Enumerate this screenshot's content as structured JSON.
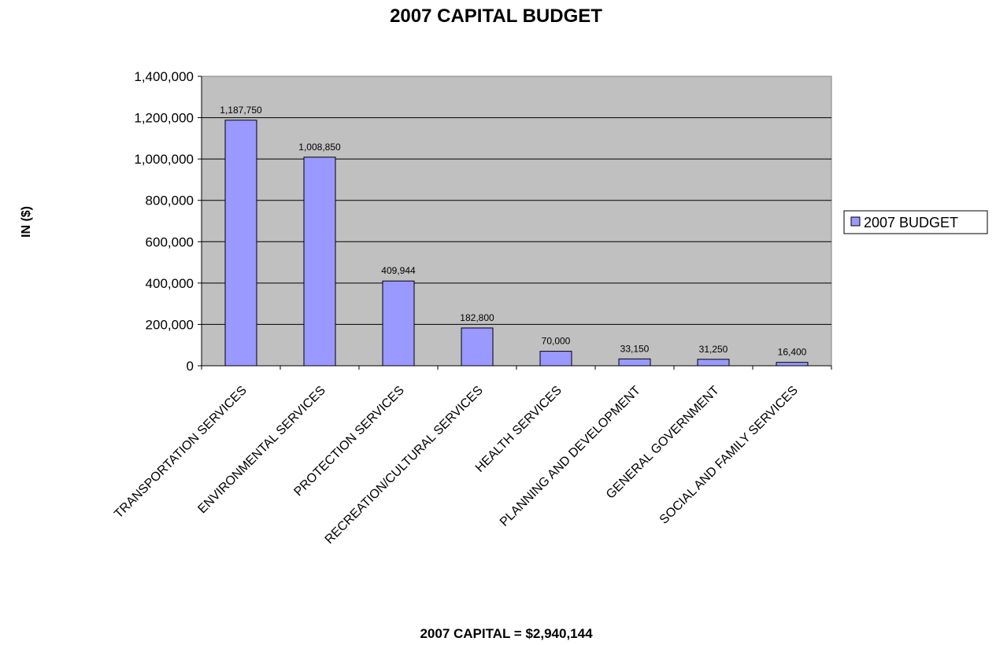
{
  "chart_data": {
    "type": "bar",
    "title": "2007 CAPITAL BUDGET",
    "ylabel": "IN ($)",
    "xlabel": "2007 CAPITAL = $2,940,144",
    "categories": [
      "TRANSPORTATION SERVICES",
      "ENVIRONMENTAL SERVICES",
      "PROTECTION SERVICES",
      "RECREATION/CULTURAL SERVICES",
      "HEALTH SERVICES",
      "PLANNING AND DEVELOPMENT",
      "GENERAL GOVERNMENT",
      "SOCIAL AND FAMILY SERVICES"
    ],
    "series": [
      {
        "name": "2007 BUDGET",
        "values": [
          1187750,
          1008850,
          409944,
          182800,
          70000,
          33150,
          31250,
          16400
        ],
        "data_labels": [
          "1,187,750",
          "1,008,850",
          "409,944",
          "182,800",
          "70,000",
          "33,150",
          "31,250",
          "16,400"
        ],
        "color": "#9999ff"
      }
    ],
    "ylim": [
      0,
      1400000
    ],
    "yticks": [
      0,
      200000,
      400000,
      600000,
      800000,
      1000000,
      1200000,
      1400000
    ],
    "ytick_labels": [
      "0",
      "200,000",
      "400,000",
      "600,000",
      "800,000",
      "1,000,000",
      "1,200,000",
      "1,400,000"
    ],
    "grid": true,
    "legend": "right",
    "plot_background": "#c0c0c0"
  }
}
